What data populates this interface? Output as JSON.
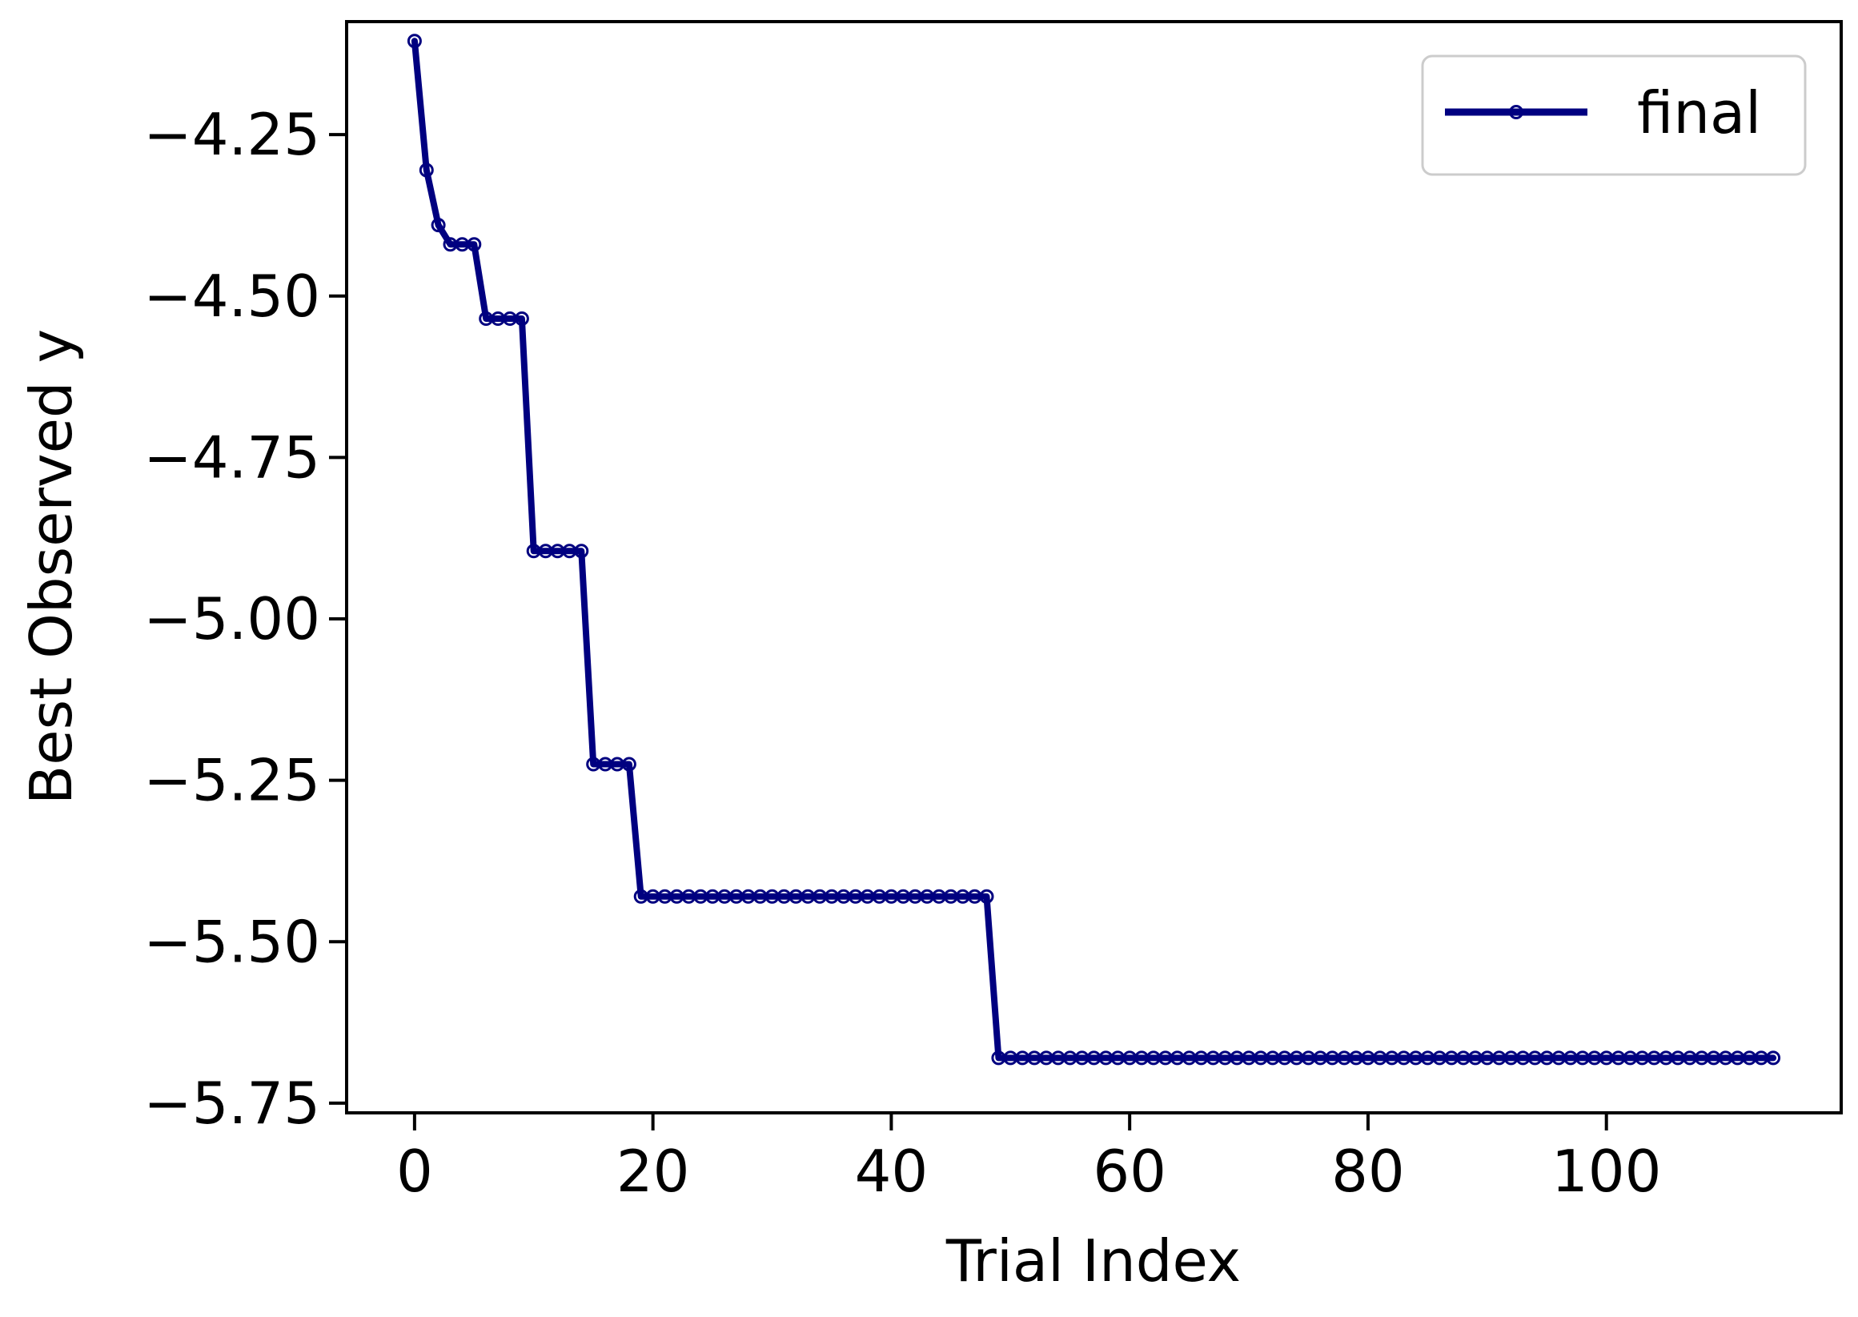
{
  "chart_data": {
    "type": "line",
    "xlabel": "Trial Index",
    "ylabel": "Best Observed y",
    "xlim": [
      -5.7,
      119.7
    ],
    "ylim": [
      -5.765,
      -4.075
    ],
    "x_ticks": [
      0,
      20,
      40,
      60,
      80,
      100
    ],
    "x_tick_labels": [
      "0",
      "20",
      "40",
      "60",
      "80",
      "100"
    ],
    "y_ticks": [
      -4.25,
      -4.5,
      -4.75,
      -5.0,
      -5.25,
      -5.5,
      -5.75
    ],
    "y_tick_labels": [
      "−4.25",
      "−4.50",
      "−4.75",
      "−5.00",
      "−5.25",
      "−5.50",
      "−5.75"
    ],
    "grid": false,
    "legend_position": "top-right",
    "series": [
      {
        "name": "final",
        "color": "#000080",
        "marker": "circle-open",
        "x_start": 0,
        "values": [
          -4.105,
          -4.305,
          -4.39,
          -4.42,
          -4.42,
          -4.42,
          -4.535,
          -4.535,
          -4.535,
          -4.535,
          -4.895,
          -4.895,
          -4.895,
          -4.895,
          -4.895,
          -5.225,
          -5.225,
          -5.225,
          -5.225,
          -5.43,
          -5.43,
          -5.43,
          -5.43,
          -5.43,
          -5.43,
          -5.43,
          -5.43,
          -5.43,
          -5.43,
          -5.43,
          -5.43,
          -5.43,
          -5.43,
          -5.43,
          -5.43,
          -5.43,
          -5.43,
          -5.43,
          -5.43,
          -5.43,
          -5.43,
          -5.43,
          -5.43,
          -5.43,
          -5.43,
          -5.43,
          -5.43,
          -5.43,
          -5.43,
          -5.68,
          -5.68,
          -5.68,
          -5.68,
          -5.68,
          -5.68,
          -5.68,
          -5.68,
          -5.68,
          -5.68,
          -5.68,
          -5.68,
          -5.68,
          -5.68,
          -5.68,
          -5.68,
          -5.68,
          -5.68,
          -5.68,
          -5.68,
          -5.68,
          -5.68,
          -5.68,
          -5.68,
          -5.68,
          -5.68,
          -5.68,
          -5.68,
          -5.68,
          -5.68,
          -5.68,
          -5.68,
          -5.68,
          -5.68,
          -5.68,
          -5.68,
          -5.68,
          -5.68,
          -5.68,
          -5.68,
          -5.68,
          -5.68,
          -5.68,
          -5.68,
          -5.68,
          -5.68,
          -5.68,
          -5.68,
          -5.68,
          -5.68,
          -5.68,
          -5.68,
          -5.68,
          -5.68,
          -5.68,
          -5.68,
          -5.68,
          -5.68,
          -5.68,
          -5.68,
          -5.68,
          -5.68,
          -5.68,
          -5.68,
          -5.68,
          -5.68
        ]
      }
    ]
  }
}
